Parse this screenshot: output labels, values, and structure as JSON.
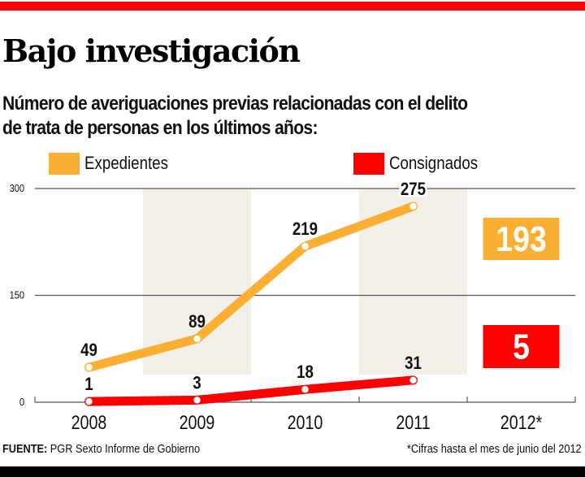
{
  "header": {
    "title": "Bajo investigación",
    "subtitle_line1": "Número de averiguaciones previas relacionadas con el delito",
    "subtitle_line2": "de trata de personas en los últimos años:"
  },
  "colors": {
    "expedientes": "#fbb034",
    "consignados": "#ff0000",
    "top_bar": "#ff0000",
    "bottom_bar": "#000000",
    "band": "#f1ede6",
    "grid": "#555555"
  },
  "chart_data": {
    "type": "line",
    "title": "Bajo investigación",
    "subtitle": "Número de averiguaciones previas relacionadas con el delito de trata de personas en los últimos años:",
    "xlabel": "",
    "ylabel": "",
    "categories": [
      "2008",
      "2009",
      "2010",
      "2011",
      "2012*"
    ],
    "ylim": [
      0,
      300
    ],
    "yticks": [
      0,
      150,
      300
    ],
    "ytick_labels": [
      "0",
      "150",
      "300"
    ],
    "grid": true,
    "legend_position": "top",
    "series": [
      {
        "name": "Expedientes",
        "color": "#fbb034",
        "values": [
          49,
          89,
          219,
          275,
          null
        ]
      },
      {
        "name": "Consignados",
        "color": "#ff0000",
        "values": [
          1,
          3,
          18,
          31,
          null
        ]
      }
    ],
    "callouts": [
      {
        "series": "Expedientes",
        "category": "2012*",
        "value": 193,
        "label": "193"
      },
      {
        "series": "Consignados",
        "category": "2012*",
        "value": 5,
        "label": "5"
      }
    ],
    "shaded_categories": [
      "2009",
      "2011"
    ]
  },
  "footer": {
    "source_label": "FUENTE:",
    "source_text": " PGR Sexto Informe de Gobierno",
    "note": "*Cifras hasta el mes de junio del 2012"
  }
}
